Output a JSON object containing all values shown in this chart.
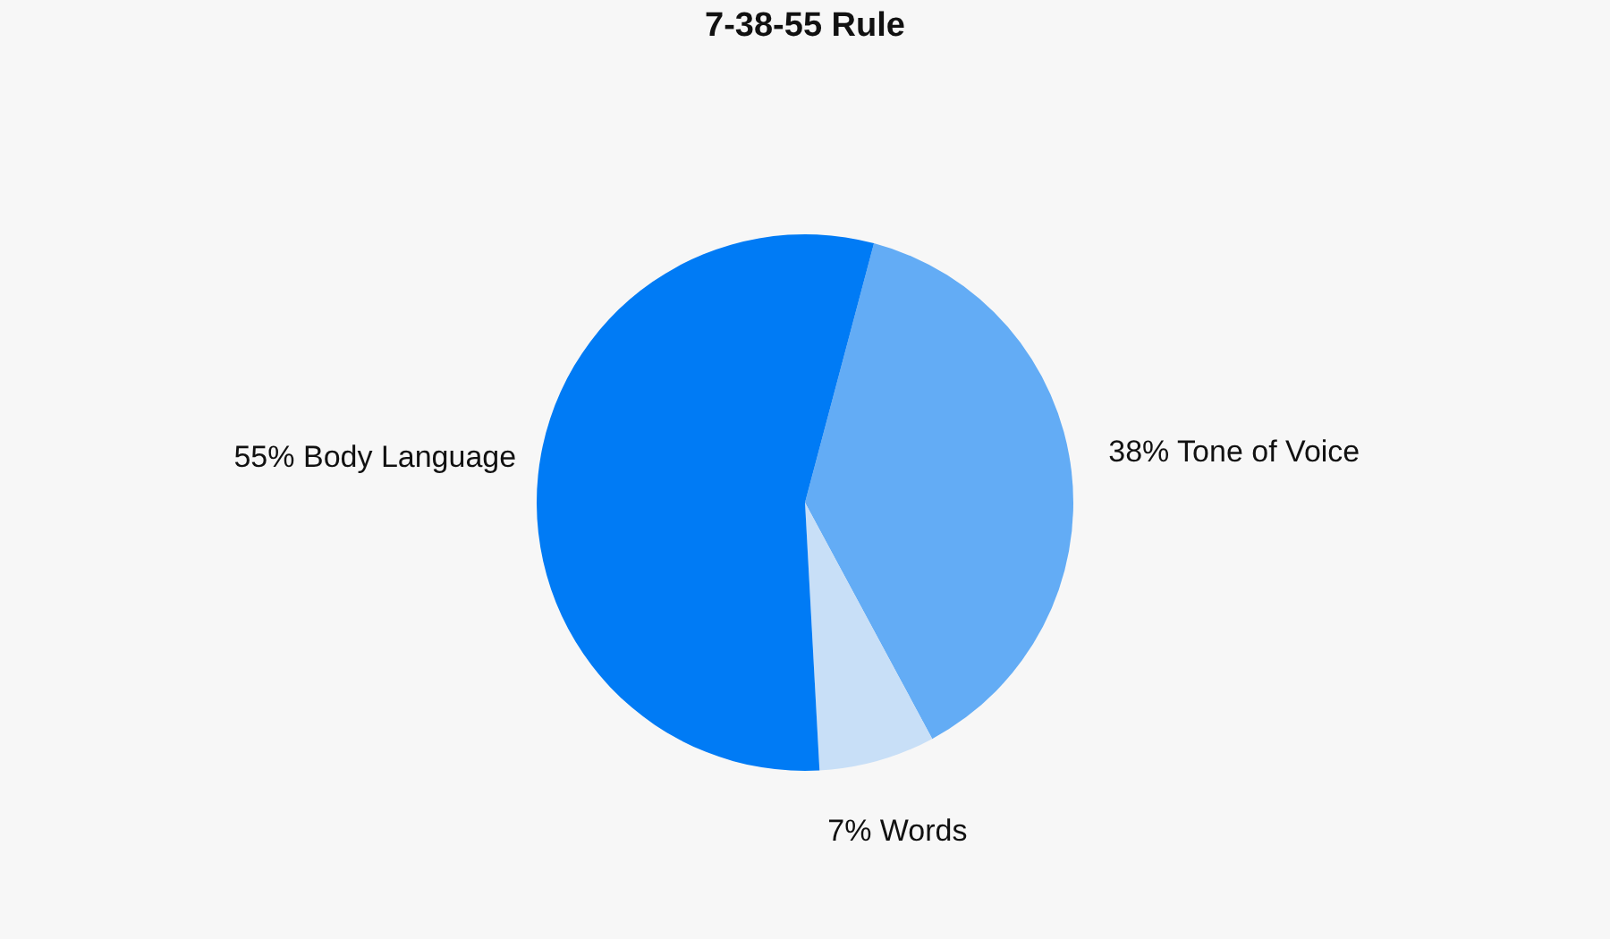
{
  "chart_data": {
    "type": "pie",
    "title": "7-38-55 Rule",
    "categories": [
      "38% Tone of Voice",
      "7% Words",
      "55% Body Language"
    ],
    "values": [
      38,
      7,
      55
    ],
    "colors": [
      "#63acf5",
      "#c8dff7",
      "#007bf5"
    ],
    "legend": false
  }
}
